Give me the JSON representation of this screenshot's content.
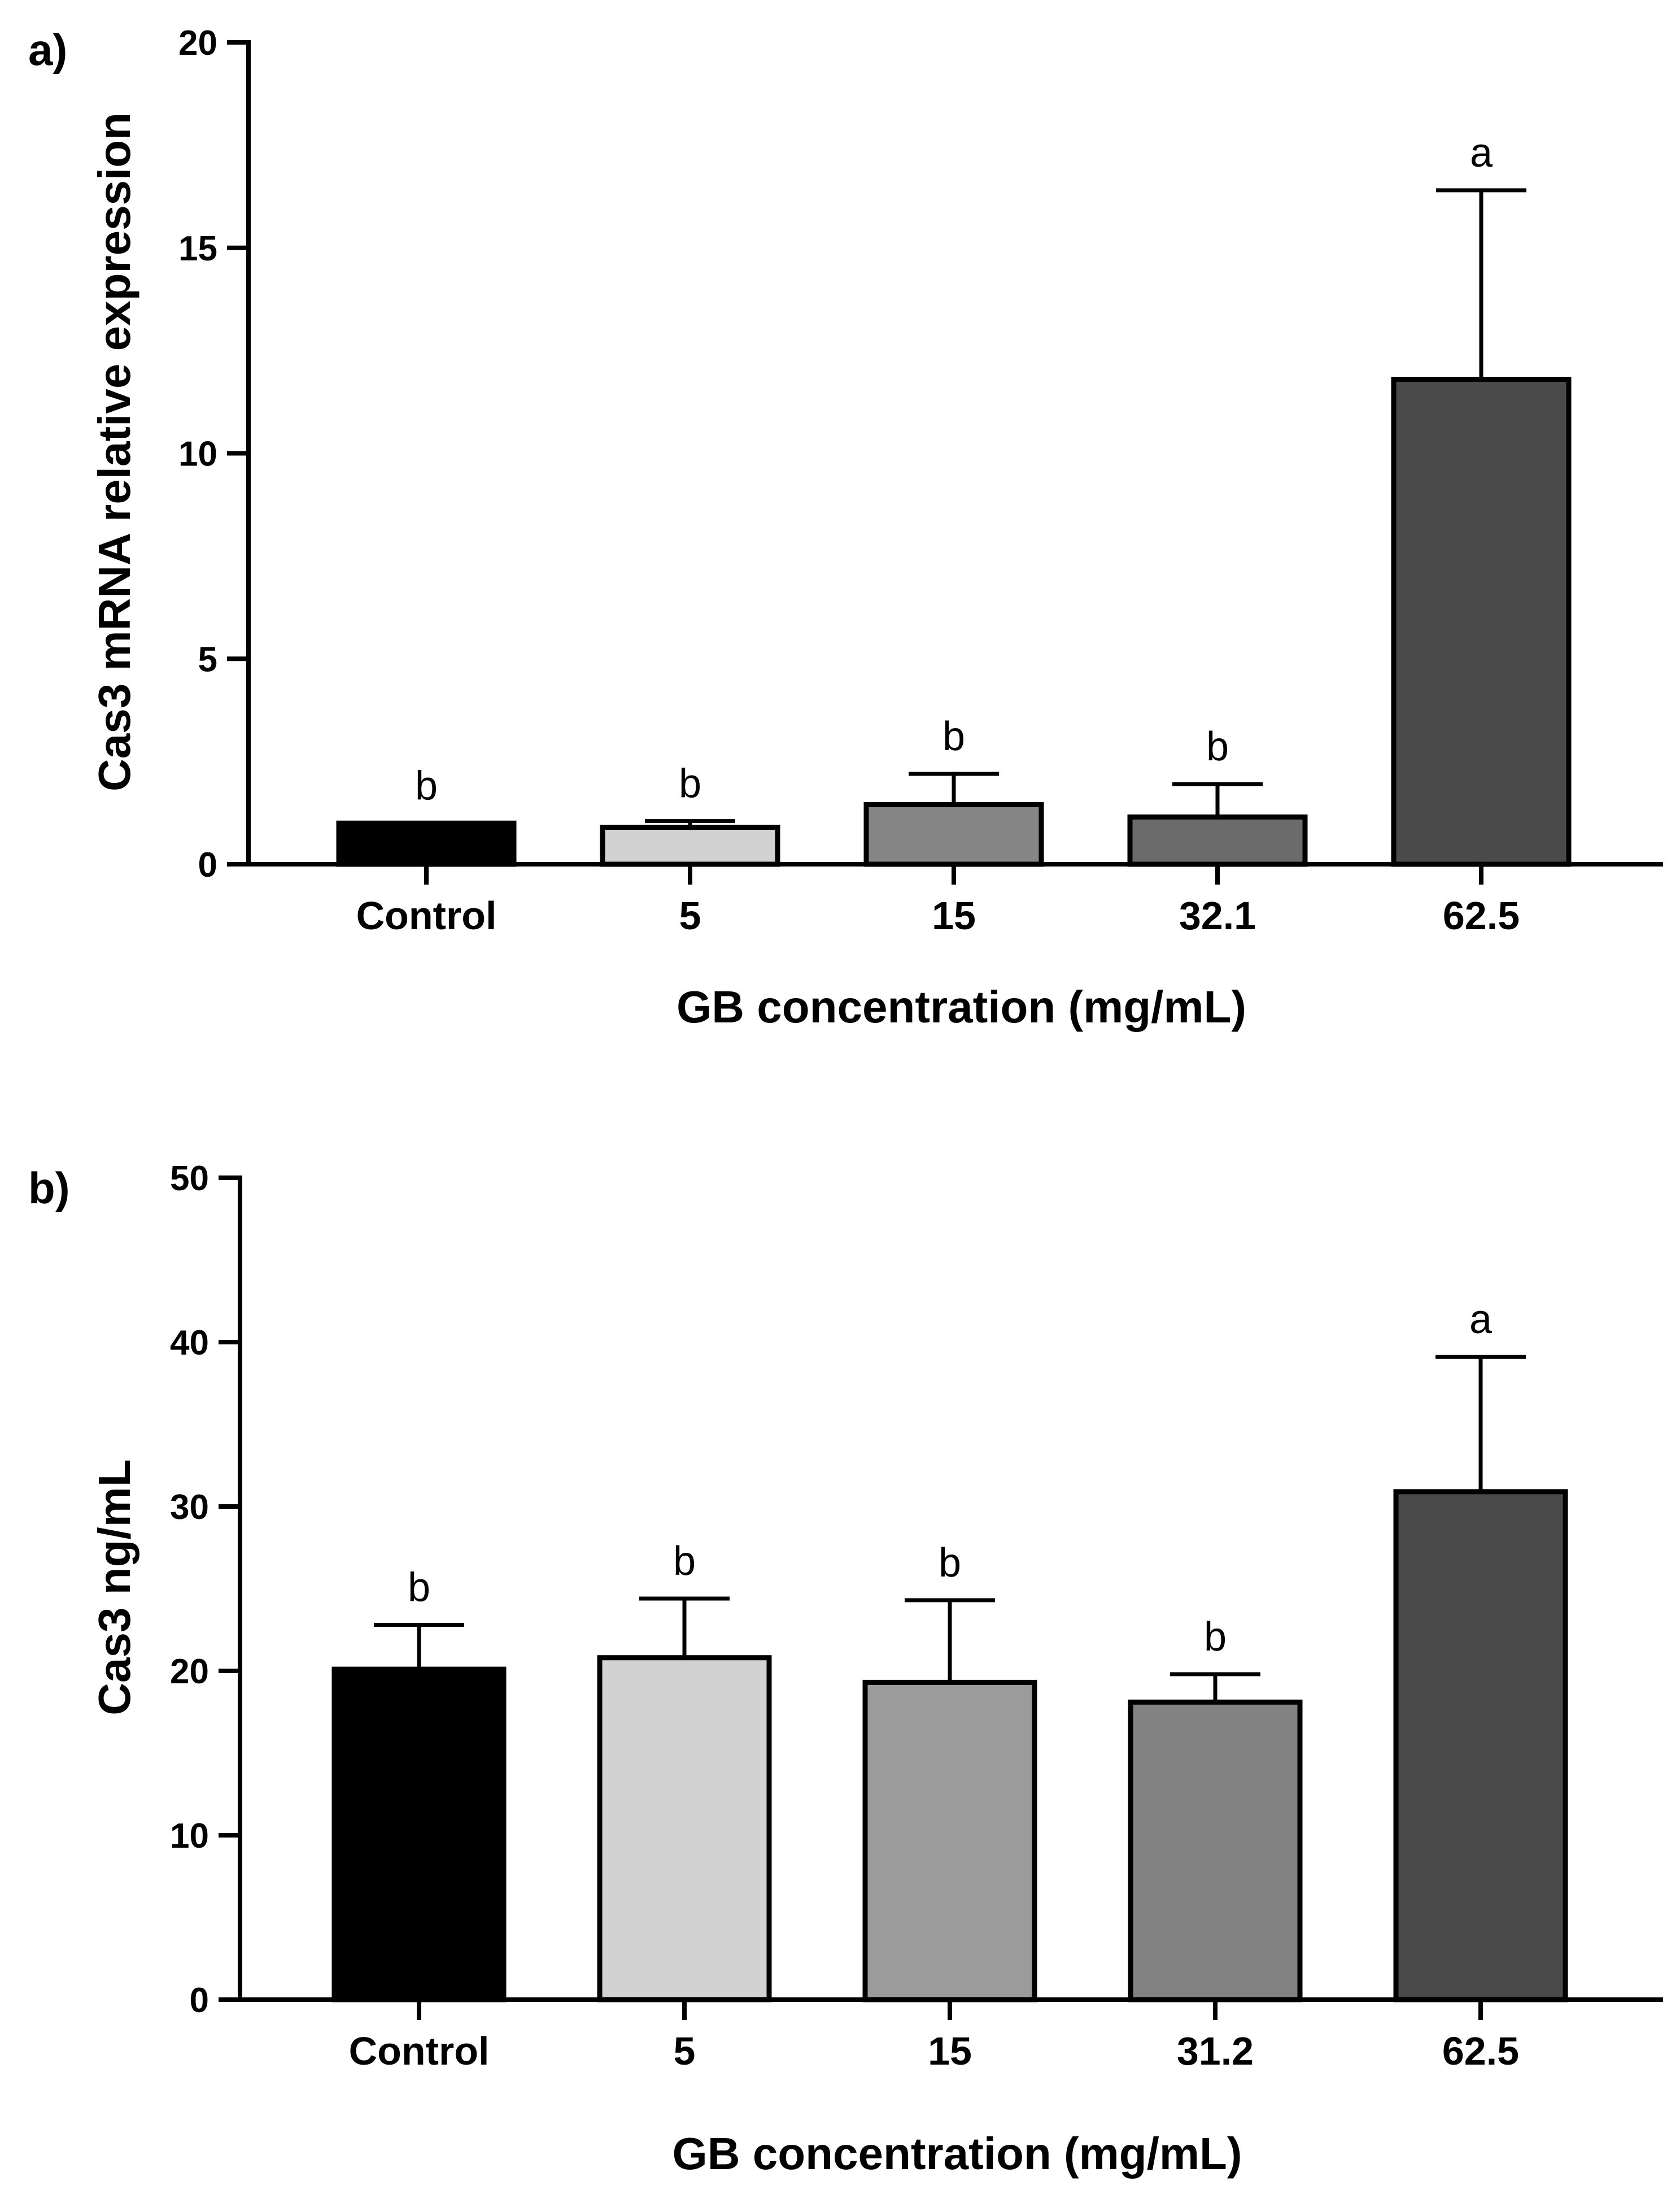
{
  "chart_data": [
    {
      "type": "bar",
      "panel_label": "a)",
      "categories": [
        "Control",
        "5",
        "15",
        "32.1",
        "62.5"
      ],
      "values": [
        1.0,
        0.9,
        1.45,
        1.15,
        11.8
      ],
      "error_upper": [
        1.0,
        1.05,
        2.2,
        1.95,
        16.4
      ],
      "significance": [
        "b",
        "b",
        "b",
        "b",
        "a"
      ],
      "colors": [
        "#000000",
        "#d2d2d2",
        "#858585",
        "#6b6b6b",
        "#4a4a4a"
      ],
      "xlabel": "GB concentration (mg/mL)",
      "ylabel": "Cas3 mRNA relative expression",
      "ylim": [
        0,
        20
      ],
      "yticks": [
        0,
        5,
        10,
        15,
        20
      ]
    },
    {
      "type": "bar",
      "panel_label": "b)",
      "categories": [
        "Control",
        "5",
        "15",
        "31.2",
        "62.5"
      ],
      "values": [
        20.1,
        20.8,
        19.3,
        18.1,
        30.9
      ],
      "error_upper": [
        22.8,
        24.4,
        24.3,
        19.8,
        39.1
      ],
      "significance": [
        "b",
        "b",
        "b",
        "b",
        "a"
      ],
      "colors": [
        "#000000",
        "#d2d2d2",
        "#9b9b9b",
        "#828282",
        "#4a4a4a"
      ],
      "xlabel": "GB concentration (mg/mL)",
      "ylabel": "Cas3 ng/mL",
      "ylim": [
        0,
        50
      ],
      "yticks": [
        0,
        10,
        20,
        30,
        40,
        50
      ]
    }
  ]
}
